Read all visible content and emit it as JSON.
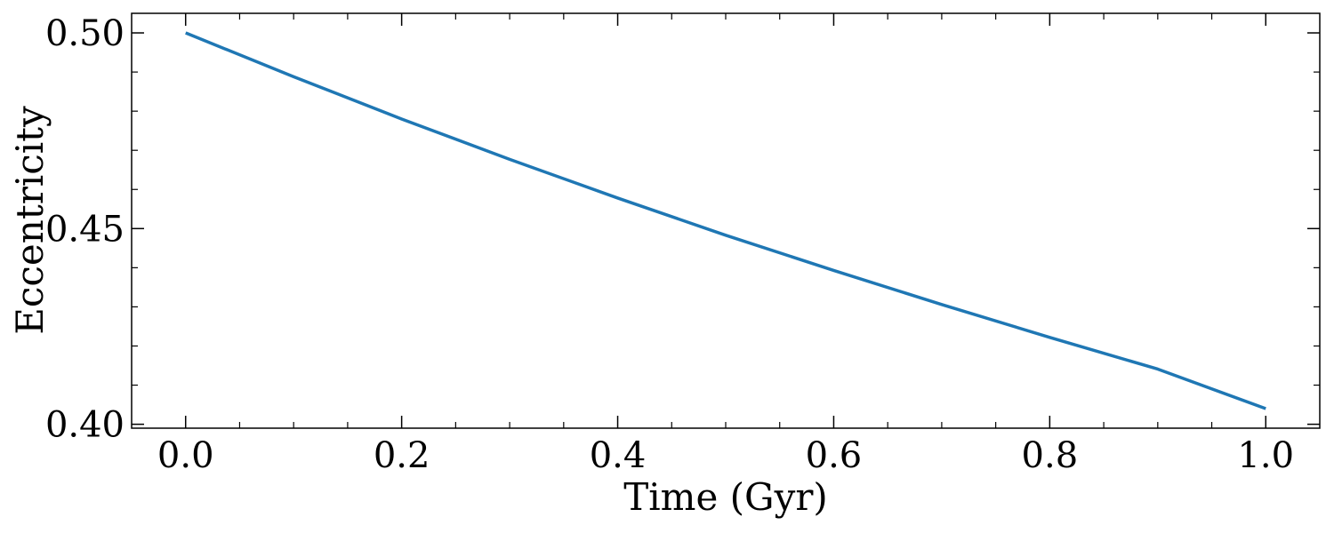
{
  "chart_data": {
    "type": "line",
    "xlabel": "Time (Gyr)",
    "ylabel": "Eccentricity",
    "xlim": [
      -0.05,
      1.05
    ],
    "ylim": [
      0.399,
      0.505
    ],
    "xticks": [
      0.0,
      0.2,
      0.4,
      0.6,
      0.8,
      1.0
    ],
    "xtick_labels": [
      "0.0",
      "0.2",
      "0.4",
      "0.6",
      "0.8",
      "1.0"
    ],
    "xminor_step": 0.05,
    "yticks": [
      0.4,
      0.45,
      0.5
    ],
    "ytick_labels": [
      "0.40",
      "0.45",
      "0.50"
    ],
    "yminor_step": 0.01,
    "grid": false,
    "legend": "none",
    "tick_direction": "in",
    "ticks_on_all_sides": true,
    "series": [
      {
        "color": "#1f77b4",
        "x": [
          0.0,
          0.1,
          0.2,
          0.3,
          0.4,
          0.5,
          0.6,
          0.7,
          0.8,
          0.9,
          1.0
        ],
        "values": [
          0.5,
          0.4888,
          0.478,
          0.4677,
          0.4578,
          0.4483,
          0.4393,
          0.4306,
          0.4222,
          0.4141,
          0.404
        ]
      }
    ]
  }
}
